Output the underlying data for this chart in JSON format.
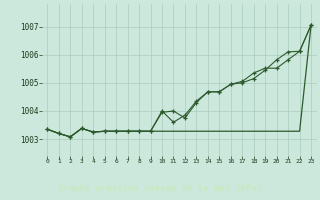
{
  "title": "Graphe pression niveau de la mer (hPa)",
  "bg_color": "#cce8dc",
  "plot_bg_color": "#cce8dc",
  "footer_bg": "#2d6b2d",
  "grid_color": "#aaccbb",
  "line_color": "#2d5a2d",
  "text_color": "#1a3a1a",
  "footer_text_color": "#c8e8c0",
  "xlim": [
    -0.5,
    23.5
  ],
  "ylim": [
    1002.4,
    1007.8
  ],
  "yticks": [
    1003,
    1004,
    1005,
    1006,
    1007
  ],
  "xtick_labels": [
    "0",
    "1",
    "2",
    "3",
    "4",
    "5",
    "6",
    "7",
    "8",
    "9",
    "10",
    "11",
    "12",
    "13",
    "14",
    "15",
    "16",
    "17",
    "18",
    "19",
    "20",
    "21",
    "22",
    "23"
  ],
  "series1_x": [
    0,
    1,
    2,
    3,
    4,
    5,
    6,
    7,
    8,
    9,
    10,
    11,
    12,
    13,
    14,
    15,
    16,
    17,
    18,
    19,
    20,
    21,
    22,
    23
  ],
  "series1_y": [
    1003.35,
    1003.2,
    1003.08,
    1003.38,
    1003.25,
    1003.28,
    1003.28,
    1003.28,
    1003.28,
    1003.28,
    1003.28,
    1003.28,
    1003.28,
    1003.28,
    1003.28,
    1003.28,
    1003.28,
    1003.28,
    1003.28,
    1003.28,
    1003.28,
    1003.28,
    1003.28,
    1007.05
  ],
  "series2_x": [
    0,
    1,
    2,
    3,
    4,
    5,
    6,
    7,
    8,
    9,
    10,
    11,
    12,
    13,
    14,
    15,
    16,
    17,
    18,
    19,
    20,
    21,
    22,
    23
  ],
  "series2_y": [
    1003.35,
    1003.2,
    1003.08,
    1003.38,
    1003.25,
    1003.28,
    1003.28,
    1003.28,
    1003.28,
    1003.28,
    1003.95,
    1004.0,
    1003.75,
    1004.3,
    1004.68,
    1004.68,
    1004.95,
    1005.0,
    1005.15,
    1005.45,
    1005.82,
    1006.1,
    1006.12,
    1007.05
  ],
  "series3_x": [
    0,
    1,
    2,
    3,
    4,
    5,
    6,
    7,
    8,
    9,
    10,
    11,
    12,
    13,
    14,
    15,
    16,
    17,
    18,
    19,
    20,
    21,
    22,
    23
  ],
  "series3_y": [
    1003.35,
    1003.2,
    1003.08,
    1003.38,
    1003.25,
    1003.28,
    1003.28,
    1003.28,
    1003.28,
    1003.28,
    1004.0,
    1003.6,
    1003.85,
    1004.35,
    1004.68,
    1004.68,
    1004.95,
    1005.05,
    1005.35,
    1005.52,
    1005.52,
    1005.82,
    1006.12,
    1007.05
  ]
}
